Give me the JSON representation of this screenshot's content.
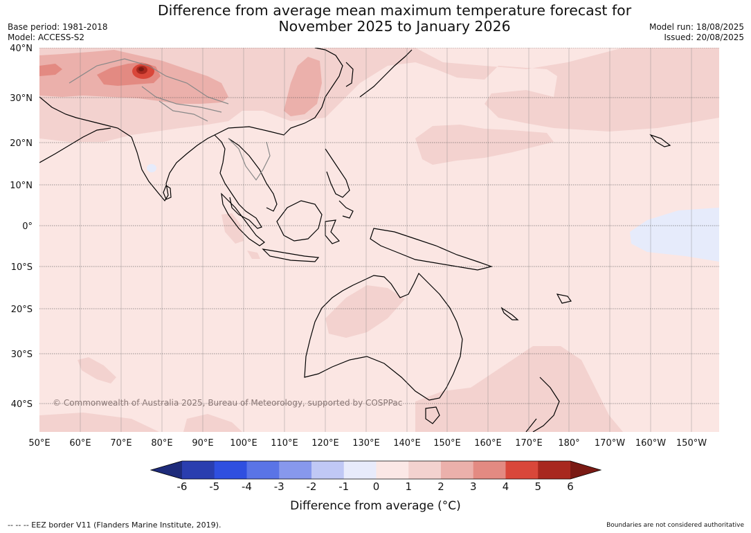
{
  "title": {
    "line1": "Difference from average mean maximum temperature forecast for",
    "line2": "November 2025 to January 2026"
  },
  "meta_left": {
    "base_period": "Base period: 1981-2018",
    "model": "Model: ACCESS-S2"
  },
  "meta_right": {
    "model_run": "Model run: 18/08/2025",
    "issued": "Issued: 20/08/2025"
  },
  "map": {
    "lat_labels": [
      "40°N",
      "30°N",
      "20°N",
      "10°N",
      "0°",
      "10°S",
      "20°S",
      "30°S",
      "40°S"
    ],
    "lon_labels": [
      "50°E",
      "60°E",
      "70°E",
      "80°E",
      "90°E",
      "100°E",
      "110°E",
      "120°E",
      "130°E",
      "140°E",
      "150°E",
      "160°E",
      "170°E",
      "180°",
      "170°W",
      "160°W",
      "150°W"
    ],
    "copyright": "© Commonwealth of Australia 2025, Bureau of Meteorology, supported by COSPPac",
    "colors": {
      "ocean_base": "#fbe6e3",
      "band_1_2": "#f3d2cf",
      "band_2_3": "#ebb0ab",
      "band_3_4": "#e38a82",
      "band_4_5": "#d9473a",
      "band_neg1_0": "#e6ebfb",
      "land": "#000000"
    }
  },
  "colorbar": {
    "tick_labels": [
      "-6",
      "-5",
      "-4",
      "-3",
      "-2",
      "-1",
      "0",
      "1",
      "2",
      "3",
      "4",
      "5",
      "6"
    ],
    "colors": [
      "#1e2b7a",
      "#2a3eaf",
      "#2f4fe0",
      "#5a74e6",
      "#8798ec",
      "#c0c8f5",
      "#e8ebfb",
      "#fbe8e6",
      "#f3d2cf",
      "#ebb0ab",
      "#e38a82",
      "#d9473a",
      "#a8281f",
      "#7a1a14"
    ],
    "label": "Difference from average ($^\\circ$C)",
    "label_display": "Difference from average (°C)"
  },
  "footer": {
    "left": "--  --  -- EEZ border V11 (Flanders Marine Institute, 2019).",
    "right": "Boundaries are not considered authoritative"
  }
}
